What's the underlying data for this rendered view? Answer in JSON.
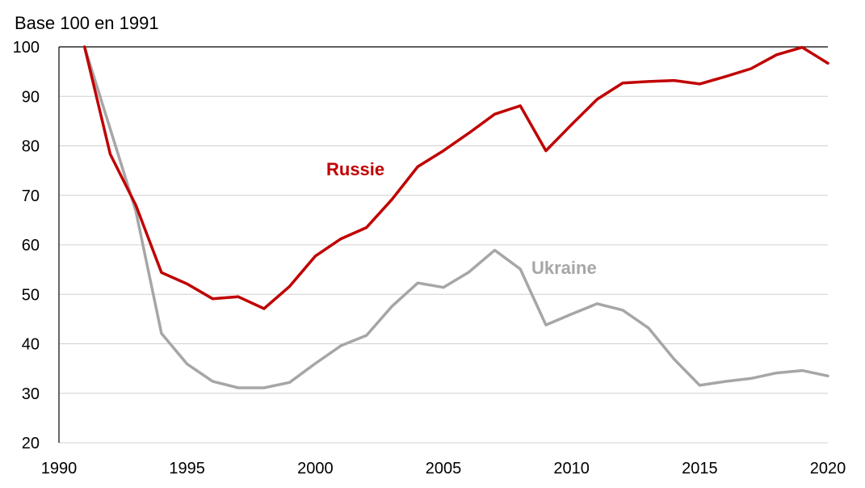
{
  "chart_data": {
    "type": "line",
    "title": "",
    "unit_label": "Base 100 en 1991",
    "xlabel": "",
    "ylabel": "",
    "xlim": [
      1990,
      2020
    ],
    "ylim": [
      20,
      100
    ],
    "x_ticks": [
      1990,
      1995,
      2000,
      2005,
      2010,
      2015,
      2020
    ],
    "y_ticks": [
      20,
      30,
      40,
      50,
      60,
      70,
      80,
      90,
      100
    ],
    "grid": "horizontal",
    "x": [
      1991,
      1992,
      1993,
      1994,
      1995,
      1996,
      1997,
      1998,
      1999,
      2000,
      2001,
      2002,
      2003,
      2004,
      2005,
      2006,
      2007,
      2008,
      2009,
      2010,
      2011,
      2012,
      2013,
      2014,
      2015,
      2016,
      2017,
      2018,
      2019,
      2020
    ],
    "series": [
      {
        "name": "Russie",
        "color": "#c00000",
        "values": [
          100,
          78.3,
          68,
          54.4,
          52.1,
          49.1,
          49.5,
          47.1,
          51.6,
          57.7,
          61.2,
          63.5,
          69.2,
          75.8,
          79,
          82.6,
          86.4,
          88.1,
          79,
          84.3,
          89.4,
          92.7,
          93,
          93.2,
          92.5,
          94,
          95.6,
          98.4,
          99.9,
          96.7
        ]
      },
      {
        "name": "Ukraine",
        "color": "#a6a6a6",
        "values": [
          100,
          83.4,
          66.8,
          42.1,
          35.9,
          32.4,
          31.1,
          31.1,
          32.2,
          36,
          39.6,
          41.7,
          47.6,
          52.3,
          51.4,
          54.5,
          58.9,
          55.1,
          43.8,
          46,
          48.1,
          46.8,
          43.2,
          36.9,
          31.6,
          32.4,
          33,
          34.1,
          34.6,
          33.5
        ]
      }
    ]
  }
}
